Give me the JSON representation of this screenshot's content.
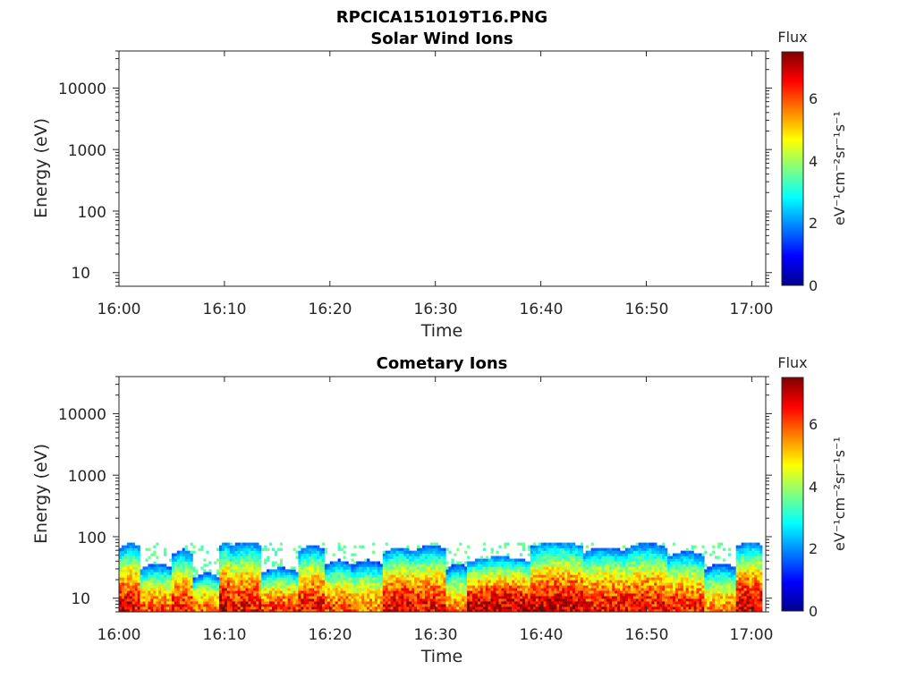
{
  "figure_title": "RPCICA151019T16.PNG",
  "chart_data": [
    {
      "type": "heatmap",
      "title": "Solar Wind Ions",
      "xlabel": "Time",
      "ylabel": "Energy (eV)",
      "x_ticks": [
        "16:00",
        "16:10",
        "16:20",
        "16:30",
        "16:40",
        "16:50",
        "17:00"
      ],
      "x_range_minutes": [
        0,
        61
      ],
      "y_scale": "log",
      "y_ticks": [
        "10",
        "100",
        "1000",
        "10000"
      ],
      "ylim": [
        6,
        40000
      ],
      "colorbar": {
        "title": "Flux",
        "unit": "eV⁻¹cm⁻²sr⁻¹s⁻¹",
        "ticks": [
          "0",
          "2",
          "4",
          "6"
        ],
        "range": [
          0,
          7.5
        ],
        "colormap": "jet"
      },
      "segments": []
    },
    {
      "type": "heatmap",
      "title": "Cometary Ions",
      "xlabel": "Time",
      "ylabel": "Energy (eV)",
      "x_ticks": [
        "16:00",
        "16:10",
        "16:20",
        "16:30",
        "16:40",
        "16:50",
        "17:00"
      ],
      "x_range_minutes": [
        0,
        61
      ],
      "y_scale": "log",
      "y_ticks": [
        "10",
        "100",
        "1000",
        "10000"
      ],
      "ylim": [
        6,
        40000
      ],
      "colorbar": {
        "title": "Flux",
        "unit": "eV⁻¹cm⁻²sr⁻¹s⁻¹",
        "ticks": [
          "0",
          "2",
          "4",
          "6"
        ],
        "range": [
          0,
          7.5
        ],
        "colormap": "jet"
      },
      "segments": [
        {
          "t0": 0.0,
          "t1": 2.0,
          "emax": 75,
          "peak": 6.8
        },
        {
          "t0": 2.0,
          "t1": 5.0,
          "emax": 35,
          "peak": 6.0
        },
        {
          "t0": 5.0,
          "t1": 7.0,
          "emax": 60,
          "peak": 6.4
        },
        {
          "t0": 7.0,
          "t1": 9.5,
          "emax": 25,
          "peak": 5.8
        },
        {
          "t0": 9.5,
          "t1": 10.5,
          "emax": 80,
          "peak": 7.0
        },
        {
          "t0": 10.5,
          "t1": 13.5,
          "emax": 80,
          "peak": 6.6
        },
        {
          "t0": 13.5,
          "t1": 17.0,
          "emax": 30,
          "peak": 6.2
        },
        {
          "t0": 17.0,
          "t1": 19.5,
          "emax": 70,
          "peak": 6.6
        },
        {
          "t0": 19.5,
          "t1": 22.0,
          "emax": 40,
          "peak": 6.0
        },
        {
          "t0": 22.0,
          "t1": 25.0,
          "emax": 40,
          "peak": 5.6
        },
        {
          "t0": 25.0,
          "t1": 28.0,
          "emax": 65,
          "peak": 6.8
        },
        {
          "t0": 28.0,
          "t1": 31.0,
          "emax": 70,
          "peak": 6.6
        },
        {
          "t0": 31.0,
          "t1": 33.0,
          "emax": 35,
          "peak": 5.6
        },
        {
          "t0": 33.0,
          "t1": 39.0,
          "emax": 45,
          "peak": 7.2
        },
        {
          "t0": 39.0,
          "t1": 44.0,
          "emax": 80,
          "peak": 7.0
        },
        {
          "t0": 44.0,
          "t1": 48.0,
          "emax": 65,
          "peak": 6.6
        },
        {
          "t0": 48.0,
          "t1": 52.0,
          "emax": 75,
          "peak": 6.6
        },
        {
          "t0": 52.0,
          "t1": 55.5,
          "emax": 55,
          "peak": 6.4
        },
        {
          "t0": 55.5,
          "t1": 58.5,
          "emax": 35,
          "peak": 5.6
        },
        {
          "t0": 58.5,
          "t1": 61.0,
          "emax": 80,
          "peak": 7.0
        }
      ]
    }
  ]
}
